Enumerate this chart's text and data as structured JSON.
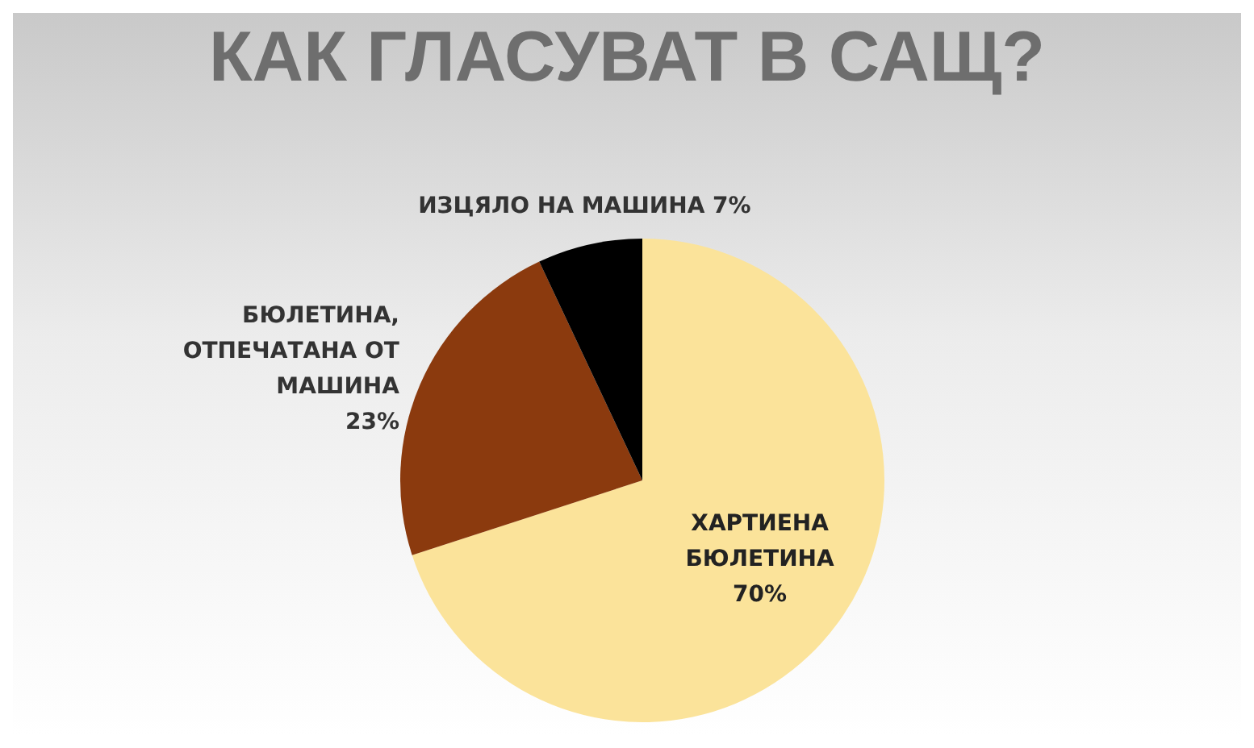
{
  "chart_data": {
    "type": "pie",
    "title": "КАК ГЛАСУВАТ В САЩ?",
    "categories": [
      "ХАРТИЕНА БЮЛЕТИНА",
      "БЮЛЕТИНА, ОТПЕЧАТАНА ОТ МАШИНА",
      "ИЗЦЯЛО НА МАШИНА"
    ],
    "values": [
      70,
      23,
      7
    ],
    "colors": [
      "#fbe39a",
      "#8b3a0e",
      "#000000"
    ],
    "value_labels": [
      "70%",
      "23%",
      "7%"
    ],
    "legend": false
  }
}
